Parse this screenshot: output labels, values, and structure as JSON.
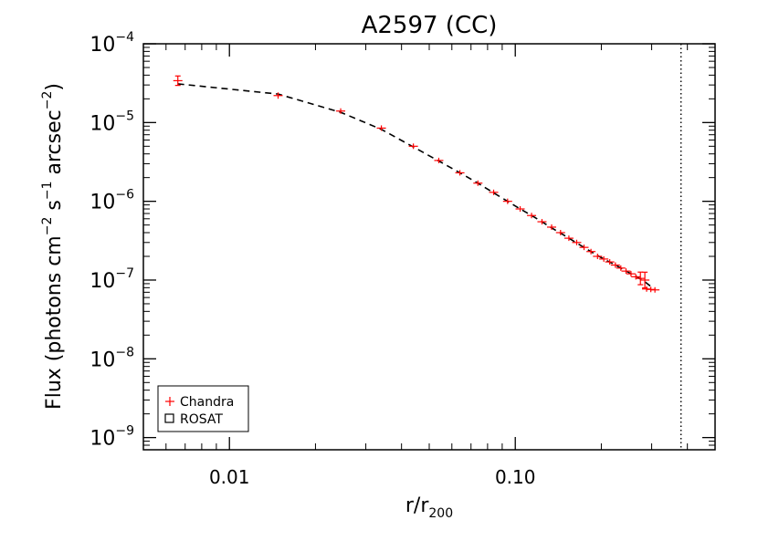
{
  "chart_data": {
    "type": "scatter",
    "title": "A2597 (CC)",
    "xlabel": {
      "main": "r/r",
      "sub": "200"
    },
    "ylabel": {
      "prefix": "Flux (photons cm",
      "e1": "−2",
      "mid1": " s",
      "e2": "−1",
      "mid2": " arcsec",
      "e3": "−2",
      "suffix": ")"
    },
    "x_scale": "log",
    "y_scale": "log",
    "xlim": [
      0.005,
      0.5
    ],
    "ylim": [
      7e-10,
      0.0001
    ],
    "x_ticks": [
      {
        "value": 0.01,
        "label": "0.01"
      },
      {
        "value": 0.1,
        "label": "0.10"
      }
    ],
    "y_ticks": [
      {
        "value": 1e-09,
        "base": "10",
        "exp": "−9"
      },
      {
        "value": 1e-08,
        "base": "10",
        "exp": "−8"
      },
      {
        "value": 1e-07,
        "base": "10",
        "exp": "−7"
      },
      {
        "value": 1e-06,
        "base": "10",
        "exp": "−6"
      },
      {
        "value": 1e-05,
        "base": "10",
        "exp": "−5"
      },
      {
        "value": 0.0001,
        "base": "10",
        "exp": "−4"
      }
    ],
    "vline_x": 0.38,
    "series": [
      {
        "name": "Chandra",
        "marker": "plus",
        "color": "#ff0000",
        "points": [
          {
            "x": 0.0066,
            "y": 3.4e-05,
            "err": 0.06
          },
          {
            "x": 0.0148,
            "y": 2.2e-05,
            "err": 0.04
          },
          {
            "x": 0.0245,
            "y": 1.4e-05,
            "err": 0.03
          },
          {
            "x": 0.034,
            "y": 8.5e-06,
            "err": 0.03
          },
          {
            "x": 0.044,
            "y": 5e-06,
            "err": 0.02
          },
          {
            "x": 0.054,
            "y": 3.3e-06,
            "err": 0.02
          },
          {
            "x": 0.064,
            "y": 2.3e-06,
            "err": 0.02
          },
          {
            "x": 0.074,
            "y": 1.7e-06,
            "err": 0.02
          },
          {
            "x": 0.084,
            "y": 1.3e-06,
            "err": 0.02
          },
          {
            "x": 0.094,
            "y": 1e-06,
            "err": 0.02
          },
          {
            "x": 0.104,
            "y": 8e-07,
            "err": 0.02
          },
          {
            "x": 0.114,
            "y": 6.6e-07,
            "err": 0.02
          },
          {
            "x": 0.124,
            "y": 5.5e-07,
            "err": 0.02
          },
          {
            "x": 0.134,
            "y": 4.7e-07,
            "err": 0.02
          },
          {
            "x": 0.144,
            "y": 4e-07,
            "err": 0.02
          },
          {
            "x": 0.154,
            "y": 3.4e-07,
            "err": 0.02
          },
          {
            "x": 0.164,
            "y": 3e-07,
            "err": 0.02
          },
          {
            "x": 0.174,
            "y": 2.6e-07,
            "err": 0.02
          },
          {
            "x": 0.184,
            "y": 2.3e-07,
            "err": 0.02
          },
          {
            "x": 0.194,
            "y": 2e-07,
            "err": 0.02
          },
          {
            "x": 0.204,
            "y": 1.85e-07,
            "err": 0.02
          },
          {
            "x": 0.214,
            "y": 1.7e-07,
            "err": 0.02
          },
          {
            "x": 0.224,
            "y": 1.55e-07,
            "err": 0.02
          },
          {
            "x": 0.234,
            "y": 1.42e-07,
            "err": 0.02
          },
          {
            "x": 0.244,
            "y": 1.3e-07,
            "err": 0.02
          },
          {
            "x": 0.254,
            "y": 1.2e-07,
            "err": 0.02
          },
          {
            "x": 0.264,
            "y": 1.1e-07,
            "err": 0.03
          },
          {
            "x": 0.274,
            "y": 1.05e-07,
            "err": 0.08
          },
          {
            "x": 0.284,
            "y": 1e-07,
            "err": 0.1
          },
          {
            "x": 0.288,
            "y": 7.7e-08,
            "err": 0.02
          },
          {
            "x": 0.298,
            "y": 7.6e-08,
            "err": 0.02
          },
          {
            "x": 0.308,
            "y": 7.5e-08,
            "err": 0.02
          }
        ]
      },
      {
        "name": "ROSAT",
        "marker": "square",
        "color": "#000000",
        "points": []
      }
    ],
    "model_line": {
      "style": "dashed",
      "color": "#000000",
      "points": [
        [
          0.0066,
          3.1e-05
        ],
        [
          0.0148,
          2.3e-05
        ],
        [
          0.0245,
          1.35e-05
        ],
        [
          0.034,
          8.2e-06
        ],
        [
          0.044,
          4.9e-06
        ],
        [
          0.054,
          3.25e-06
        ],
        [
          0.064,
          2.3e-06
        ],
        [
          0.074,
          1.7e-06
        ],
        [
          0.084,
          1.28e-06
        ],
        [
          0.094,
          1e-06
        ],
        [
          0.104,
          8e-07
        ],
        [
          0.114,
          6.6e-07
        ],
        [
          0.124,
          5.5e-07
        ],
        [
          0.134,
          4.6e-07
        ],
        [
          0.144,
          3.95e-07
        ],
        [
          0.154,
          3.4e-07
        ],
        [
          0.164,
          2.95e-07
        ],
        [
          0.174,
          2.6e-07
        ],
        [
          0.184,
          2.3e-07
        ],
        [
          0.194,
          2.05e-07
        ],
        [
          0.204,
          1.85e-07
        ],
        [
          0.224,
          1.55e-07
        ],
        [
          0.244,
          1.3e-07
        ],
        [
          0.264,
          1.12e-07
        ],
        [
          0.284,
          9.5e-08
        ],
        [
          0.298,
          8.3e-08
        ]
      ]
    },
    "legend": {
      "position": "bottom-left",
      "entries": [
        {
          "label": "Chandra",
          "marker": "plus",
          "color": "#ff0000"
        },
        {
          "label": "ROSAT",
          "marker": "square",
          "color": "#000000"
        }
      ]
    },
    "grid": false
  }
}
